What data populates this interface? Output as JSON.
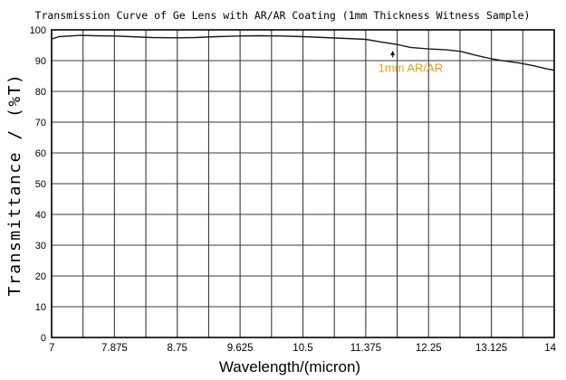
{
  "chart_data": {
    "type": "line",
    "title": "Transmission Curve of Ge Lens with AR/AR Coating (1mm Thickness Witness Sample)",
    "xlabel": "Wavelength/(micron)",
    "ylabel": "Transmittance / (%T)",
    "xlim": [
      7,
      14
    ],
    "ylim": [
      0,
      100
    ],
    "x_ticks": [
      "7",
      "7.875",
      "8.75",
      "9.625",
      "10.5",
      "11.375",
      "12.25",
      "13.125",
      "14"
    ],
    "x_tick_values": [
      7,
      7.875,
      8.75,
      9.625,
      10.5,
      11.375,
      12.25,
      13.125,
      14
    ],
    "y_ticks": [
      "0",
      "10",
      "20",
      "30",
      "40",
      "50",
      "60",
      "70",
      "80",
      "90",
      "100"
    ],
    "y_tick_values": [
      0,
      10,
      20,
      30,
      40,
      50,
      60,
      70,
      80,
      90,
      100
    ],
    "x_minor_step": 0.4375,
    "grid": true,
    "series": [
      {
        "name": "",
        "color": "#1a1a1a",
        "x": [
          7.0,
          7.1,
          7.25,
          7.4,
          7.6,
          7.875,
          8.1,
          8.4,
          8.75,
          9.0,
          9.3,
          9.625,
          9.9,
          10.2,
          10.5,
          10.8,
          11.1,
          11.375,
          11.6,
          11.8,
          12.0,
          12.25,
          12.5,
          12.7,
          12.9,
          13.125,
          13.3,
          13.5,
          13.7,
          13.9,
          14.0
        ],
        "y": [
          97.0,
          97.8,
          98.0,
          98.2,
          98.1,
          98.0,
          97.8,
          97.5,
          97.4,
          97.5,
          97.8,
          98.0,
          98.1,
          98.0,
          97.8,
          97.5,
          97.2,
          96.9,
          96.0,
          95.3,
          94.3,
          93.8,
          93.5,
          93.0,
          91.8,
          90.6,
          89.9,
          89.3,
          88.4,
          87.3,
          86.9
        ]
      }
    ],
    "annotation": {
      "text": "1mm AR/AR",
      "color": "#e0a020",
      "x": 11.75,
      "y": 87.5,
      "arrow_to": [
        11.75,
        93.8
      ]
    }
  }
}
